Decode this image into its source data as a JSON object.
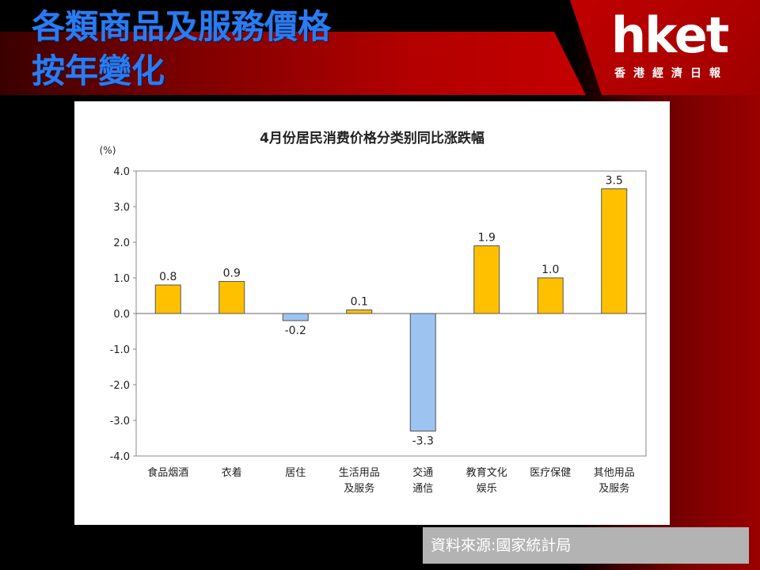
{
  "header": {
    "title_line1": "各類商品及服務價格",
    "title_line2": "按年變化"
  },
  "brand": {
    "logo": "hket",
    "tagline": "香港經濟日報"
  },
  "colors": {
    "positive_bar": "#FFC000",
    "negative_bar": "#9DC3F0",
    "title_blue": "#2B7BF2",
    "brand_red": "#C00000"
  },
  "source": "資料來源:國家統計局",
  "chart_data": {
    "type": "bar",
    "title": "4月份居民消费价格分类别同比涨跌幅",
    "ylabel": "(%)",
    "ylim": [
      -4.0,
      4.0
    ],
    "yticks": [
      "4.0",
      "3.0",
      "2.0",
      "1.0",
      "0.0",
      "-1.0",
      "-2.0",
      "-3.0",
      "-4.0"
    ],
    "categories": [
      [
        "食品烟酒"
      ],
      [
        "衣着"
      ],
      [
        "居住"
      ],
      [
        "生活用品",
        "及服务"
      ],
      [
        "交通",
        "通信"
      ],
      [
        "教育文化",
        "娱乐"
      ],
      [
        "医疗保健"
      ],
      [
        "其他用品",
        "及服务"
      ]
    ],
    "values": [
      0.8,
      0.9,
      -0.2,
      0.1,
      -3.3,
      1.9,
      1.0,
      3.5
    ],
    "value_labels": [
      "0.8",
      "0.9",
      "-0.2",
      "0.1",
      "-3.3",
      "1.9",
      "1.0",
      "3.5"
    ],
    "legend": false,
    "grid": false
  }
}
